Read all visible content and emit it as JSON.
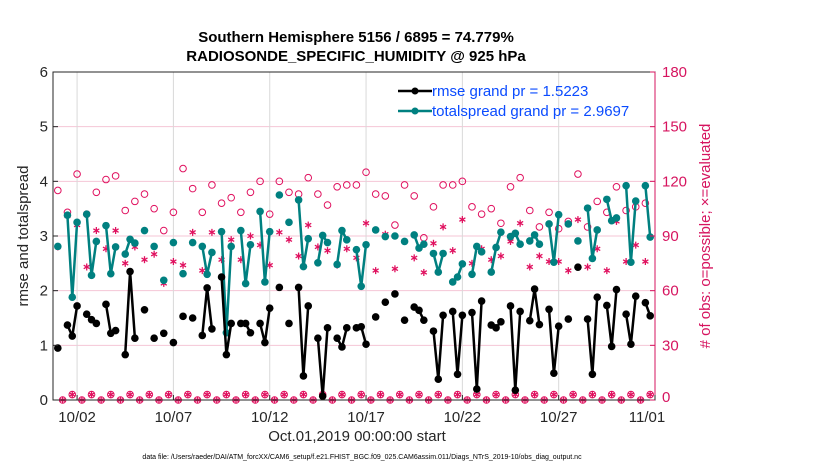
{
  "chart_data": {
    "type": "line",
    "title": [
      "Southern Hemisphere 5156 / 6895 = 74.779%",
      "RADIOSONDE_SPECIFIC_HUMIDITY @ 925 hPa"
    ],
    "xlabel": "Oct.01,2019 00:00:00 start",
    "ylabel": "rmse and totalspread",
    "ylabel_right": "# of obs: o=possible; ×=evaluated",
    "footer": "data file: /Users/raeder/DAI/ATM_forcXX/CAM6_setup/f.e21.FHIST_BGC.f09_025.CAM6assim.011/Diags_NTrS_2019-10/obs_diag_output.nc",
    "xlim_days": [
      -0.25,
      31
    ],
    "x_step_days": 0.25,
    "x_ticks": [
      {
        "day": 1,
        "label": "10/02"
      },
      {
        "day": 6,
        "label": "10/07"
      },
      {
        "day": 11,
        "label": "10/12"
      },
      {
        "day": 16,
        "label": "10/17"
      },
      {
        "day": 21,
        "label": "10/22"
      },
      {
        "day": 26,
        "label": "10/27"
      },
      {
        "day": 31,
        "label": "11/01"
      }
    ],
    "ylim": [
      0,
      6
    ],
    "y_ticks": [
      "0",
      "1",
      "2",
      "3",
      "4",
      "5",
      "6"
    ],
    "ylim_right": [
      0,
      180
    ],
    "y_ticks_right": [
      "0",
      "30",
      "60",
      "90",
      "120",
      "150",
      "180"
    ],
    "grid": true,
    "legend_placement": "top-right",
    "colors": {
      "rmse": "#000000",
      "totalspread": "#008080",
      "counts": "#e0115f",
      "legend_text": "#0a4bff"
    },
    "series": [
      {
        "name": "rmse grand pr = 1.5223",
        "axis": "left",
        "values": [
          0.95,
          null,
          1.37,
          1.17,
          1.72,
          null,
          1.57,
          1.47,
          1.4,
          null,
          1.75,
          1.22,
          1.27,
          null,
          0.83,
          2.35,
          1.13,
          null,
          1.65,
          null,
          1.13,
          null,
          1.22,
          null,
          1.05,
          null,
          1.53,
          null,
          1.5,
          null,
          1.18,
          2.05,
          1.3,
          null,
          2.25,
          0.83,
          1.4,
          null,
          1.4,
          1.4,
          1.23,
          null,
          1.4,
          1.05,
          1.68,
          null,
          2.06,
          null,
          1.4,
          null,
          2.06,
          0.44,
          1.72,
          null,
          1.13,
          0.07,
          1.32,
          null,
          1.13,
          0.97,
          1.32,
          null,
          1.32,
          1.34,
          1.02,
          null,
          1.52,
          null,
          1.79,
          null,
          1.94,
          null,
          1.46,
          null,
          1.7,
          1.64,
          1.46,
          null,
          1.26,
          0.38,
          1.55,
          null,
          1.62,
          0.47,
          1.55,
          null,
          1.6,
          0.2,
          1.81,
          null,
          1.37,
          1.32,
          1.43,
          null,
          1.72,
          0.18,
          1.62,
          null,
          1.45,
          2.03,
          1.38,
          null,
          1.66,
          0.49,
          1.35,
          null,
          1.48,
          null,
          2.43,
          null,
          1.48,
          0.47,
          1.88,
          null,
          1.73,
          0.98,
          2.02,
          null,
          1.57,
          1.02,
          1.9,
          null,
          1.78,
          1.54
        ]
      },
      {
        "name": "totalspread grand pr = 2.9697",
        "axis": "left",
        "values": [
          2.81,
          null,
          3.38,
          1.88,
          3.25,
          null,
          3.4,
          2.28,
          2.9,
          null,
          3.19,
          2.31,
          2.8,
          null,
          2.67,
          2.94,
          2.87,
          null,
          3.1,
          null,
          2.81,
          null,
          2.19,
          null,
          2.88,
          null,
          2.31,
          null,
          2.88,
          null,
          2.81,
          2.3,
          2.7,
          null,
          3.08,
          1.23,
          2.81,
          null,
          3.1,
          2.13,
          2.84,
          null,
          3.45,
          2.16,
          3.08,
          null,
          3.75,
          null,
          3.25,
          null,
          3.66,
          2.44,
          2.95,
          null,
          2.51,
          3.01,
          2.88,
          null,
          2.48,
          3.1,
          2.93,
          null,
          2.75,
          2.08,
          2.84,
          null,
          3.11,
          null,
          2.99,
          null,
          3.0,
          null,
          2.9,
          null,
          3.02,
          2.78,
          2.85,
          null,
          2.68,
          2.34,
          2.68,
          null,
          2.16,
          2.25,
          2.49,
          null,
          2.3,
          2.81,
          2.71,
          null,
          2.34,
          2.79,
          3.07,
          null,
          2.99,
          3.05,
          2.85,
          null,
          2.91,
          3.02,
          2.85,
          null,
          3.22,
          2.52,
          3.39,
          null,
          3.22,
          null,
          2.91,
          null,
          3.51,
          2.59,
          3.11,
          null,
          3.67,
          3.28,
          3.33,
          null,
          3.92,
          2.52,
          3.64,
          null,
          3.92,
          2.98
        ]
      },
      {
        "name": "possible",
        "axis": "right",
        "marker": "o",
        "values": [
          115,
          0,
          103,
          3,
          124,
          0,
          102,
          3,
          114,
          0,
          121,
          3,
          123,
          0,
          104,
          3,
          109,
          0,
          113,
          3,
          105,
          0,
          93,
          3,
          103,
          0,
          127,
          3,
          116,
          0,
          103,
          3,
          118,
          0,
          108,
          3,
          111,
          0,
          103,
          3,
          114,
          0,
          120,
          3,
          102,
          0,
          120,
          3,
          114,
          0,
          113,
          3,
          122,
          0,
          113,
          3,
          107,
          0,
          117,
          3,
          118,
          0,
          118,
          3,
          125,
          0,
          113,
          3,
          112,
          0,
          96,
          3,
          118,
          0,
          112,
          3,
          89,
          0,
          106,
          3,
          118,
          0,
          118,
          3,
          120,
          0,
          106,
          3,
          102,
          0,
          105,
          3,
          97,
          0,
          117,
          3,
          122,
          0,
          104,
          3,
          95,
          0,
          103,
          3,
          94,
          0,
          98,
          3,
          124,
          0,
          95,
          3,
          109,
          0,
          103,
          3,
          117,
          0,
          104,
          3,
          106,
          0,
          108,
          3
        ]
      },
      {
        "name": "evaluated",
        "axis": "right",
        "marker": "*",
        "values": [
          84,
          0,
          101,
          3,
          96,
          0,
          73,
          3,
          93,
          0,
          83,
          3,
          93,
          0,
          75,
          3,
          84,
          0,
          77,
          3,
          80,
          0,
          64,
          3,
          76,
          0,
          74,
          3,
          92,
          0,
          71,
          3,
          92,
          0,
          77,
          3,
          88,
          0,
          77,
          3,
          90,
          0,
          85,
          3,
          74,
          0,
          92,
          3,
          88,
          0,
          79,
          3,
          96,
          0,
          84,
          3,
          82,
          0,
          74,
          3,
          83,
          0,
          78,
          3,
          97,
          0,
          71,
          3,
          91,
          0,
          72,
          3,
          87,
          0,
          78,
          3,
          70,
          0,
          86,
          3,
          95,
          0,
          82,
          3,
          99,
          0,
          75,
          3,
          83,
          0,
          77,
          3,
          79,
          0,
          87,
          3,
          97,
          0,
          73,
          3,
          79,
          0,
          76,
          3,
          76,
          0,
          71,
          3,
          99,
          0,
          73,
          3,
          83,
          0,
          71,
          3,
          98,
          0,
          76,
          3,
          85,
          0,
          76,
          3
        ]
      }
    ]
  }
}
